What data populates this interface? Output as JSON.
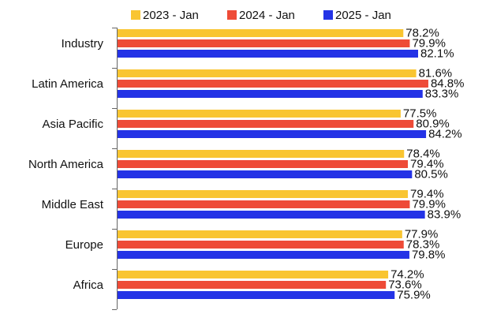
{
  "chart_data": {
    "type": "bar",
    "orientation": "horizontal",
    "title": "",
    "xlabel": "",
    "ylabel": "",
    "legend_position": "top",
    "grid": false,
    "categories": [
      "Industry",
      "Latin America",
      "Asia Pacific",
      "North America",
      "Middle East",
      "Europe",
      "Africa"
    ],
    "series": [
      {
        "name": "2023 - Jan",
        "color": "#f9c531",
        "values": [
          78.2,
          81.6,
          77.5,
          78.4,
          79.4,
          77.9,
          74.2
        ],
        "labels": [
          "78.2%",
          "81.6%",
          "77.5%",
          "78.4%",
          "79.4%",
          "77.9%",
          "74.2%"
        ]
      },
      {
        "name": "2024 - Jan",
        "color": "#ee4b37",
        "values": [
          79.9,
          84.8,
          80.9,
          79.4,
          79.9,
          78.3,
          73.6
        ],
        "labels": [
          "79.9%",
          "84.8%",
          "80.9%",
          "79.4%",
          "79.9%",
          "78.3%",
          "73.6%"
        ]
      },
      {
        "name": "2025 - Jan",
        "color": "#2433e6",
        "values": [
          82.1,
          83.3,
          84.2,
          80.5,
          83.9,
          79.8,
          75.9
        ],
        "labels": [
          "82.1%",
          "83.3%",
          "84.2%",
          "80.5%",
          "83.9%",
          "79.8%",
          "75.9%"
        ]
      }
    ],
    "xlim": [
      0,
      100
    ]
  }
}
